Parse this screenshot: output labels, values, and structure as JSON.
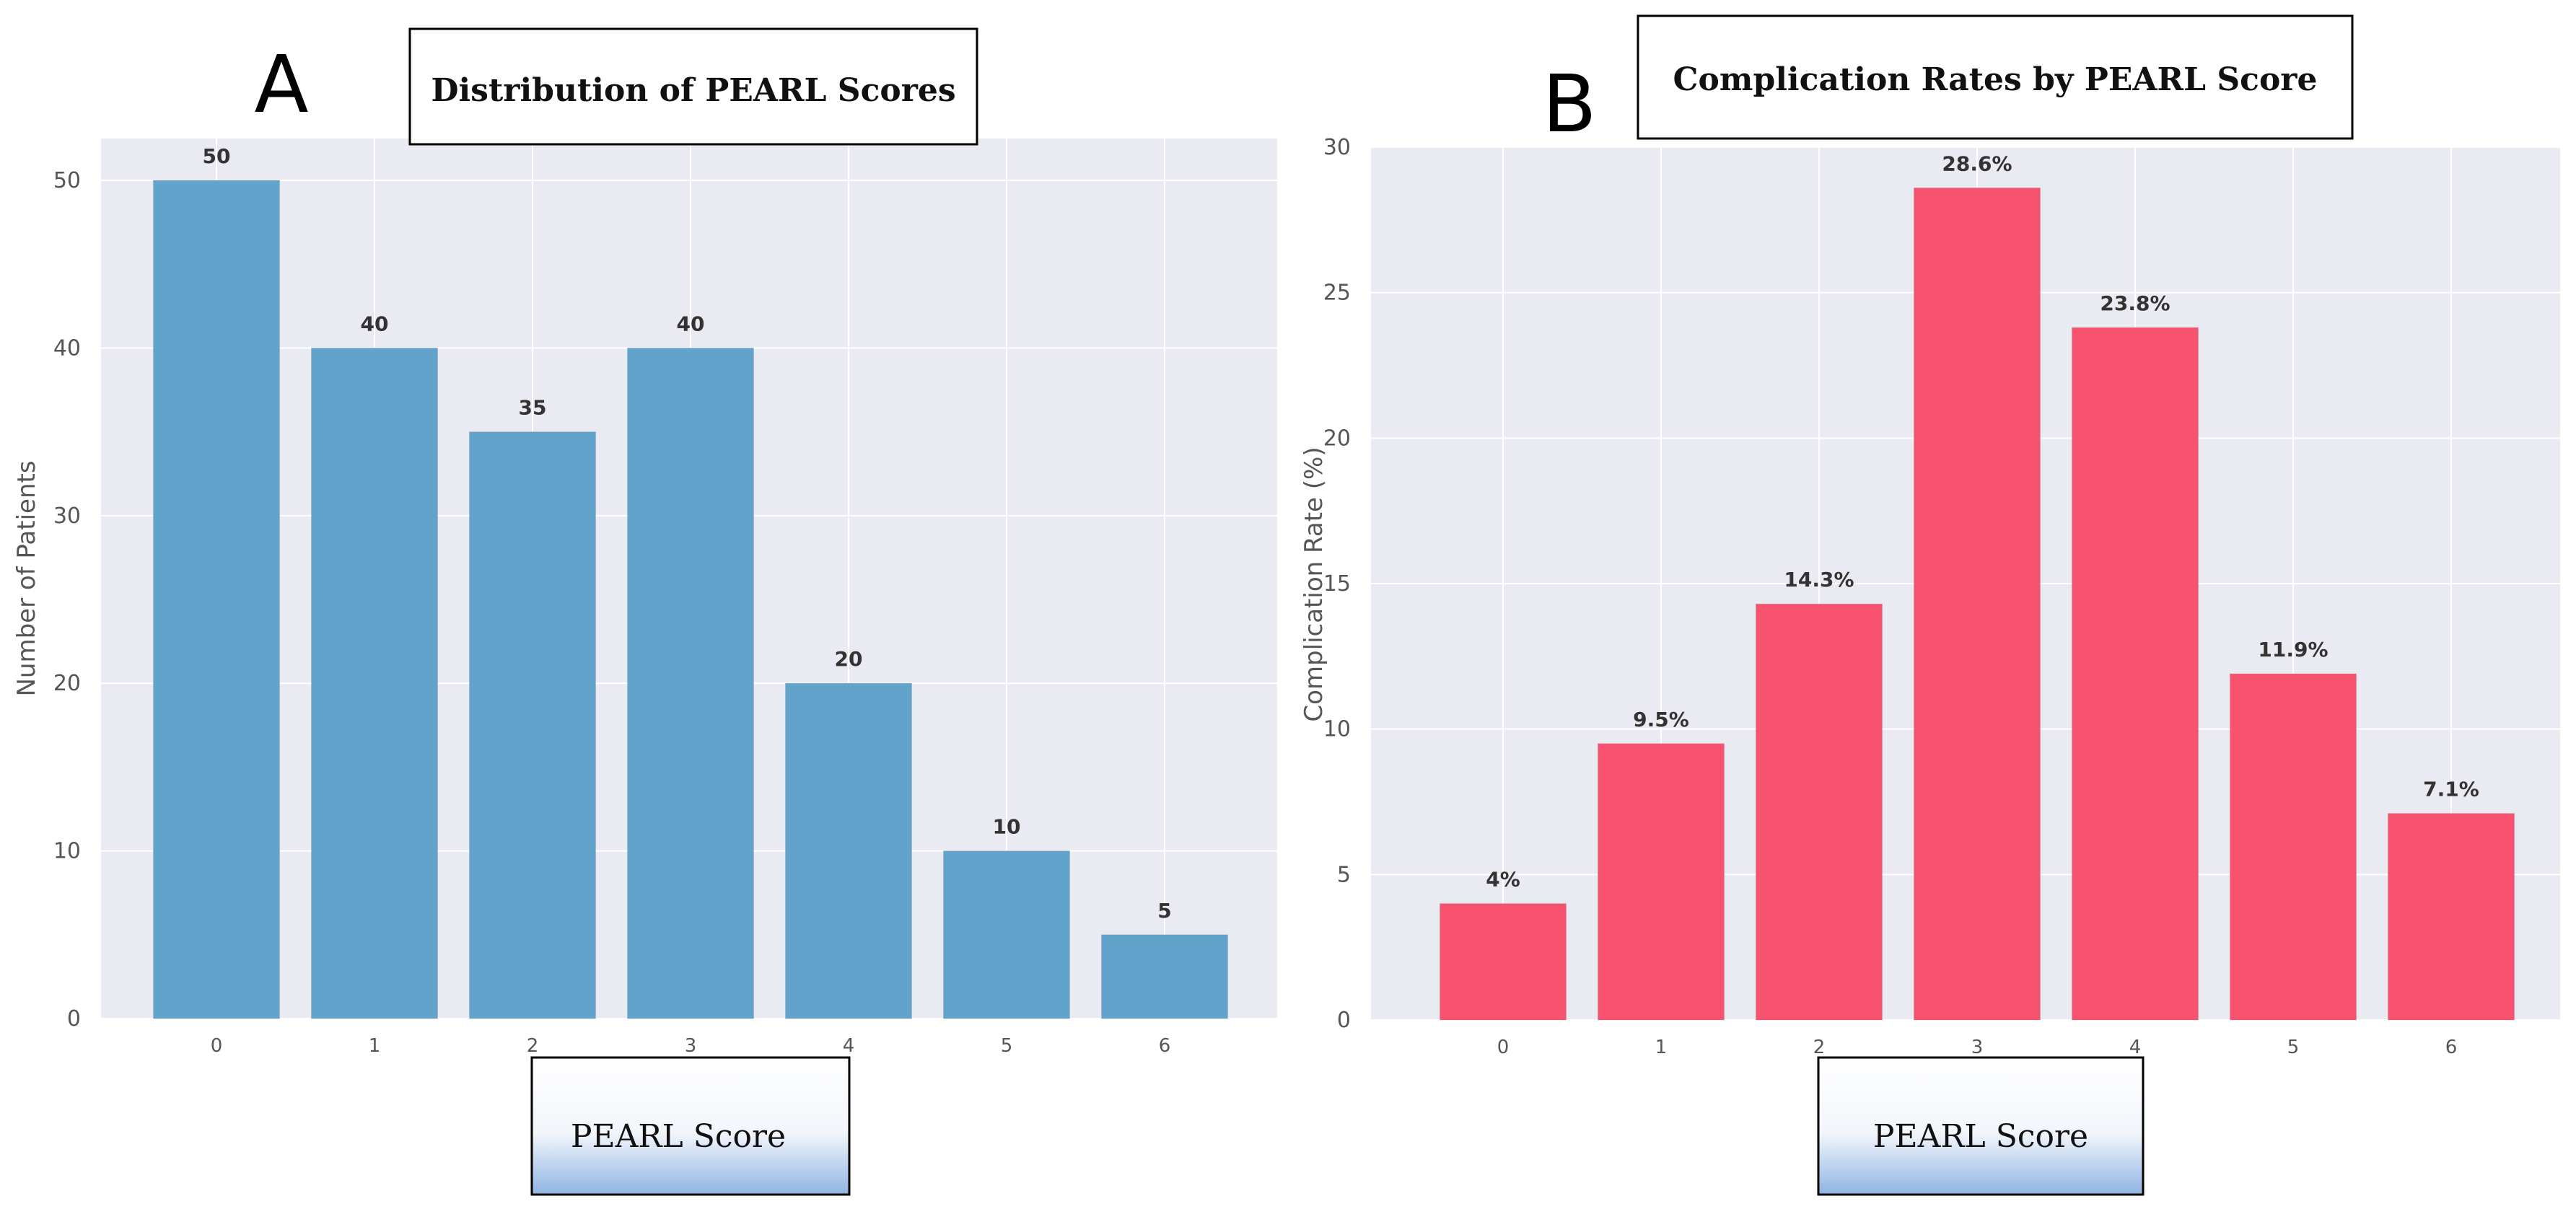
{
  "chart_data": [
    {
      "panel": "A",
      "type": "bar",
      "title": "Distribution of PEARL Scores",
      "xlabel": "PEARL Score",
      "ylabel": "Number of Patients",
      "categories": [
        "0",
        "1",
        "2",
        "3",
        "4",
        "5",
        "6"
      ],
      "values": [
        50,
        40,
        35,
        40,
        20,
        10,
        5
      ],
      "data_labels": [
        "50",
        "40",
        "35",
        "40",
        "20",
        "10",
        "5"
      ],
      "yticks": [
        0,
        10,
        20,
        30,
        40,
        50
      ],
      "ylim": [
        0,
        52.5
      ],
      "grid": true,
      "bar_color": "#62a3cb"
    },
    {
      "panel": "B",
      "type": "bar",
      "title": "Complication Rates by PEARL Score",
      "xlabel": "PEARL Score",
      "ylabel": "Complication Rate (%)",
      "categories": [
        "0",
        "1",
        "2",
        "3",
        "4",
        "5",
        "6"
      ],
      "values": [
        4,
        9.5,
        14.3,
        28.6,
        23.8,
        11.9,
        7.1
      ],
      "data_labels": [
        "4%",
        "9.5%",
        "14.3%",
        "28.6%",
        "23.8%",
        "11.9%",
        "7.1%"
      ],
      "yticks": [
        0,
        5,
        10,
        15,
        20,
        25,
        30
      ],
      "ylim": [
        0,
        30
      ],
      "grid": true,
      "bar_color": "#f7526e"
    }
  ]
}
